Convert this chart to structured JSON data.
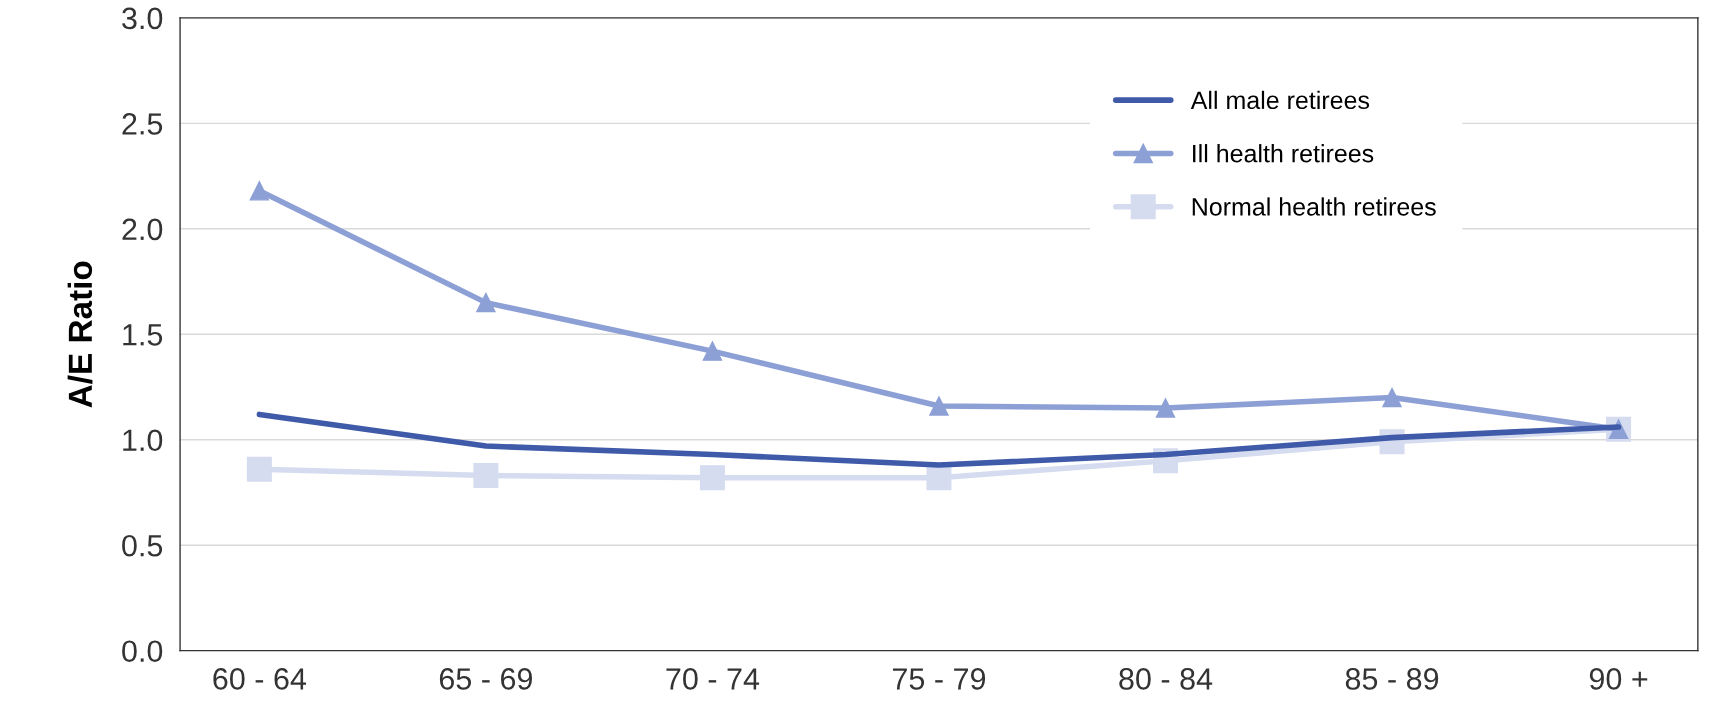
{
  "chart_data": {
    "type": "line",
    "ylabel": "A/E Ratio",
    "categories": [
      "60 - 64",
      "65 - 69",
      "70 - 74",
      "75 - 79",
      "80 - 84",
      "85 - 89",
      "90 +"
    ],
    "series": [
      {
        "name": "All male retirees",
        "color": "#3f5aa8",
        "marker": "none",
        "values": [
          1.12,
          0.97,
          0.93,
          0.88,
          0.93,
          1.01,
          1.06
        ]
      },
      {
        "name": "Ill health retirees",
        "color": "#8da0d6",
        "marker": "triangle",
        "values": [
          2.18,
          1.65,
          1.42,
          1.16,
          1.15,
          1.2,
          1.05
        ]
      },
      {
        "name": "Normal health retirees",
        "color": "#d5dcef",
        "marker": "square",
        "values": [
          0.86,
          0.83,
          0.82,
          0.82,
          0.9,
          0.99,
          1.05
        ]
      }
    ],
    "ylim": [
      0,
      3
    ],
    "yticks": [
      {
        "value": 0,
        "label": "0.0"
      },
      {
        "value": 0.5,
        "label": "0.5"
      },
      {
        "value": 1,
        "label": "1.0"
      },
      {
        "value": 1.5,
        "label": "1.5"
      },
      {
        "value": 2,
        "label": "2.0"
      },
      {
        "value": 2.5,
        "label": "2.5"
      },
      {
        "value": 3,
        "label": "3.0"
      }
    ],
    "grid": "y",
    "legend": "top right",
    "line_style": "solid"
  }
}
